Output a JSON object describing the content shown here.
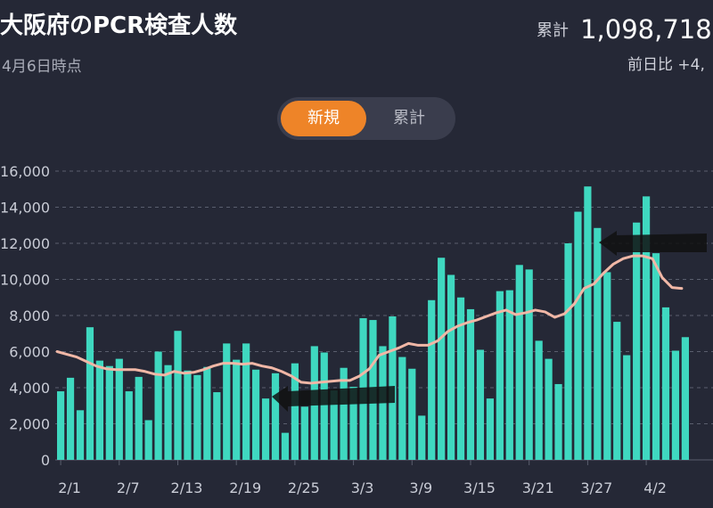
{
  "header": {
    "title": "大阪府のPCR検査人数",
    "as_of": "4月6日時点",
    "total_label": "累計",
    "total_value": "1,098,718",
    "diff_label": "前日比 +4,"
  },
  "toggle": {
    "new_label": "新規",
    "cumulative_label": "累計"
  },
  "colors": {
    "background": "#252836",
    "bar": "#3fd8c0",
    "average_line": "#f0b7a6",
    "accent": "#ee8428",
    "grid": "#5a5e6e"
  },
  "chart_data": {
    "type": "bar",
    "series": [
      {
        "values": [
          3800,
          4550,
          2750,
          7350,
          5500,
          5200,
          5600,
          3800,
          4600,
          2200,
          6000,
          5250,
          7150,
          4950,
          4700,
          5150,
          3750,
          6450,
          5550,
          6450,
          5000,
          3400,
          4800,
          1500,
          5350,
          2950,
          6300,
          5950,
          3850,
          5100,
          4050,
          7850,
          7750,
          6300,
          7950,
          5700,
          5050,
          2450,
          8850,
          11200,
          10250,
          9000,
          8350,
          6100,
          3400,
          9350,
          9400,
          10800,
          10550,
          6600,
          5600,
          4200,
          12000,
          13750,
          15150,
          12850,
          10400,
          7650,
          5800,
          13150,
          14600,
          11450,
          8450,
          6050,
          6800
        ]
      }
    ],
    "average_line": [
      6000,
      5850,
      5700,
      5450,
      5200,
      5050,
      5000,
      5000,
      5000,
      4900,
      4750,
      4700,
      4900,
      4800,
      4850,
      5000,
      5200,
      5350,
      5350,
      5300,
      5350,
      5200,
      5100,
      4900,
      4650,
      4300,
      4250,
      4300,
      4350,
      4400,
      4400,
      4650,
      5050,
      5800,
      6000,
      6200,
      6450,
      6350,
      6350,
      6600,
      7100,
      7400,
      7600,
      7750,
      7950,
      8150,
      8300,
      8050,
      8150,
      8300,
      8200,
      7900,
      8100,
      8650,
      9500,
      9750,
      10350,
      10850,
      11150,
      11300,
      11300,
      11150,
      10100,
      9550,
      9500
    ],
    "x_tick_labels": [
      "2/1",
      "2/7",
      "2/13",
      "2/19",
      "2/25",
      "3/3",
      "3/9",
      "3/15",
      "3/21",
      "3/27",
      "4/2"
    ],
    "x_tick_index": [
      0,
      6,
      12,
      18,
      24,
      30,
      36,
      42,
      48,
      54,
      60
    ],
    "y_ticks": [
      0,
      2000,
      4000,
      6000,
      8000,
      10000,
      12000,
      14000,
      16000
    ],
    "y_tick_labels": [
      "0",
      "2,000",
      "4,000",
      "6,000",
      "8,000",
      "10,000",
      "12,000",
      "14,000",
      "16,000"
    ],
    "ylim": [
      0,
      16000
    ],
    "grid": true
  }
}
